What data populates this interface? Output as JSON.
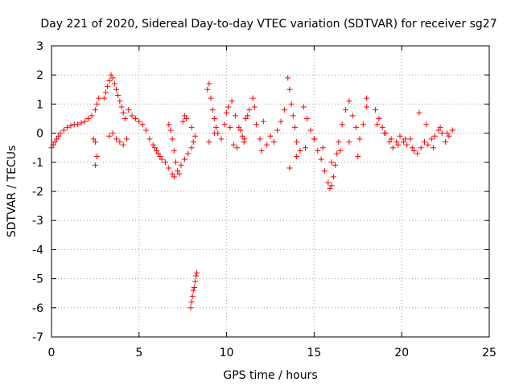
{
  "chart_data": {
    "type": "scatter",
    "title": "Day 221 of 2020, Sidereal Day-to-day VTEC variation (SDTVAR) for receiver sg27",
    "xlabel": "GPS time / hours",
    "ylabel": "SDTVAR / TECUs",
    "xlim": [
      0,
      25
    ],
    "ylim": [
      -7,
      3
    ],
    "xticks": [
      0,
      5,
      10,
      15,
      20,
      25
    ],
    "yticks": [
      -7,
      -6,
      -5,
      -4,
      -3,
      -2,
      -1,
      0,
      1,
      2,
      3
    ],
    "grid": true,
    "marker": "+",
    "color": "#ff0000",
    "series": [
      {
        "name": "SDTVAR",
        "x": [
          0.0,
          0.1,
          0.2,
          0.3,
          0.4,
          0.5,
          0.7,
          0.9,
          1.1,
          1.3,
          1.5,
          1.7,
          1.9,
          2.1,
          2.3,
          2.5,
          2.6,
          2.7,
          2.5,
          2.6,
          2.4,
          2.5,
          3.0,
          3.1,
          3.2,
          3.3,
          3.4,
          3.5,
          3.6,
          3.7,
          3.8,
          3.9,
          4.0,
          4.1,
          4.2,
          3.3,
          3.5,
          3.7,
          3.9,
          4.1,
          4.3,
          4.4,
          4.6,
          4.8,
          5.0,
          5.2,
          5.4,
          5.6,
          5.8,
          5.9,
          6.0,
          6.1,
          6.2,
          6.3,
          6.5,
          6.7,
          6.9,
          7.0,
          7.2,
          7.4,
          7.6,
          7.8,
          8.0,
          8.1,
          6.7,
          6.8,
          6.9,
          7.0,
          7.1,
          7.3,
          7.5,
          7.6,
          7.7,
          8.0,
          8.2,
          7.95,
          8.0,
          8.05,
          8.1,
          8.15,
          8.2,
          8.25,
          8.3,
          8.9,
          9.0,
          9.1,
          9.2,
          9.3,
          9.4,
          9.5,
          9.7,
          9.9,
          10.1,
          10.3,
          10.5,
          10.7,
          10.9,
          11.0,
          11.1,
          11.3,
          11.5,
          11.7,
          11.9,
          12.1,
          12.3,
          12.5,
          9.0,
          9.3,
          10.0,
          10.2,
          10.4,
          10.6,
          10.8,
          11.0,
          11.2,
          11.6,
          12.0,
          12.7,
          12.9,
          13.1,
          13.3,
          13.5,
          13.6,
          13.7,
          13.8,
          13.9,
          14.0,
          14.2,
          14.4,
          14.6,
          14.8,
          15.0,
          15.2,
          15.4,
          15.6,
          15.8,
          15.9,
          16.0,
          16.1,
          16.2,
          16.3,
          16.4,
          16.6,
          16.8,
          17.0,
          17.2,
          17.4,
          17.6,
          17.8,
          18.0,
          13.6,
          14.0,
          14.5,
          15.0,
          15.5,
          16.0,
          16.5,
          17.0,
          17.5,
          18.0,
          18.5,
          18.7,
          18.9,
          19.1,
          19.3,
          19.5,
          19.7,
          19.9,
          20.1,
          20.3,
          20.5,
          20.7,
          20.9,
          21.1,
          21.3,
          21.5,
          21.7,
          21.9,
          22.1,
          22.3,
          22.5,
          22.7,
          22.9,
          18.6,
          19.0,
          19.4,
          19.8,
          20.2,
          20.6,
          21.0,
          21.4,
          21.8,
          22.2,
          22.6
        ],
        "y": [
          -0.5,
          -0.4,
          -0.3,
          -0.2,
          -0.1,
          0.0,
          0.1,
          0.2,
          0.25,
          0.3,
          0.3,
          0.35,
          0.4,
          0.5,
          0.6,
          0.8,
          1.0,
          1.2,
          -0.3,
          -0.8,
          -0.2,
          -1.1,
          1.2,
          1.4,
          1.6,
          1.8,
          2.0,
          1.9,
          1.7,
          1.5,
          1.3,
          1.1,
          0.9,
          0.7,
          0.5,
          -0.1,
          0.0,
          -0.2,
          -0.3,
          -0.4,
          -0.2,
          0.8,
          0.6,
          0.5,
          0.4,
          0.3,
          0.1,
          -0.2,
          -0.4,
          -0.5,
          -0.6,
          -0.7,
          -0.8,
          -0.9,
          -1.0,
          -1.2,
          -1.4,
          -1.5,
          -1.3,
          -1.1,
          -0.9,
          -0.7,
          -0.5,
          -0.3,
          0.3,
          0.1,
          -0.2,
          -0.6,
          -1.0,
          -1.4,
          0.4,
          0.6,
          0.5,
          0.2,
          -0.1,
          -6.0,
          -5.8,
          -5.6,
          -5.4,
          -5.3,
          -5.1,
          -4.9,
          -4.8,
          1.5,
          1.7,
          1.2,
          0.8,
          0.5,
          0.2,
          0.0,
          -0.2,
          0.3,
          0.9,
          1.1,
          0.6,
          0.2,
          -0.1,
          -0.3,
          0.5,
          0.8,
          1.2,
          0.3,
          -0.2,
          0.4,
          -0.4,
          -0.1,
          -0.3,
          0.0,
          0.7,
          0.2,
          -0.4,
          -0.5,
          0.1,
          -0.2,
          0.6,
          0.9,
          -0.6,
          -0.3,
          0.1,
          0.4,
          0.8,
          1.9,
          1.5,
          1.0,
          0.6,
          0.2,
          -0.3,
          -0.6,
          0.9,
          0.5,
          0.1,
          -0.2,
          -0.6,
          -0.9,
          -1.3,
          -1.7,
          -1.9,
          -1.8,
          -1.5,
          -1.1,
          -0.7,
          -0.3,
          0.3,
          0.8,
          1.1,
          0.6,
          0.2,
          -0.2,
          0.3,
          0.9,
          -1.2,
          -0.8,
          -0.5,
          -0.2,
          -0.5,
          -1.0,
          -0.6,
          -0.3,
          -0.8,
          1.2,
          0.8,
          0.5,
          0.2,
          0.0,
          -0.3,
          -0.5,
          -0.3,
          -0.1,
          -0.3,
          -0.4,
          -0.2,
          -0.6,
          -0.7,
          -0.5,
          -0.3,
          -0.4,
          -0.2,
          -0.1,
          0.1,
          0.0,
          -0.3,
          -0.1,
          0.1,
          0.3,
          0.0,
          -0.2,
          -0.4,
          -0.2,
          -0.5,
          0.7,
          0.3,
          -0.5,
          0.2,
          0.0
        ]
      }
    ]
  }
}
